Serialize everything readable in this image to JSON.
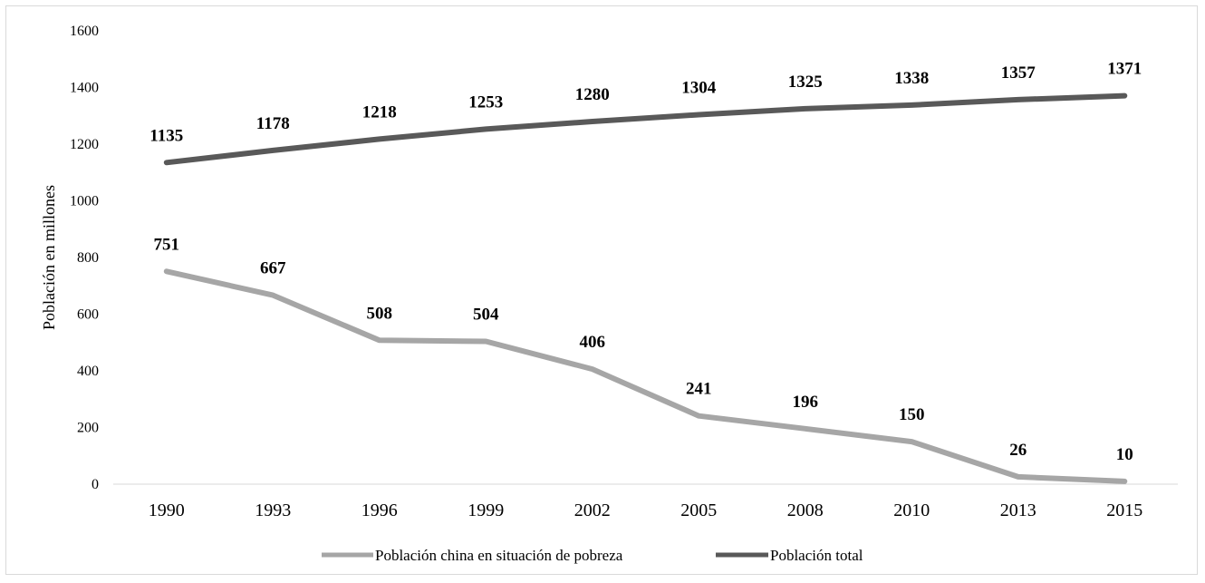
{
  "chart_data": {
    "type": "line",
    "title": "",
    "xlabel": "",
    "ylabel": "Población en millones",
    "ylim": [
      0,
      1600
    ],
    "yticks": [
      0,
      200,
      400,
      600,
      800,
      1000,
      1200,
      1400,
      1600
    ],
    "grid": false,
    "legend_position": "bottom",
    "categories": [
      "1990",
      "1993",
      "1996",
      "1999",
      "2002",
      "2005",
      "2008",
      "2010",
      "2013",
      "2015"
    ],
    "series": [
      {
        "name": "Población china en situación de pobreza",
        "color": "#a6a6a6",
        "values": [
          751,
          667,
          508,
          504,
          406,
          241,
          196,
          150,
          26,
          10
        ]
      },
      {
        "name": "Población total",
        "color": "#595959",
        "values": [
          1135,
          1178,
          1218,
          1253,
          1280,
          1304,
          1325,
          1338,
          1357,
          1371
        ]
      }
    ]
  }
}
